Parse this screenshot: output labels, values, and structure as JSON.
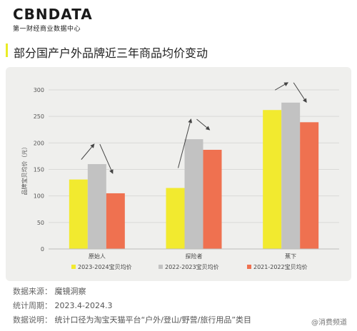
{
  "header": {
    "logo": "CBNDATA",
    "logo_sub": "第一财经商业数据中心",
    "title": "部分国产户外品牌近三年商品均价变动"
  },
  "chart_data": {
    "type": "bar",
    "categories": [
      "原始人",
      "探险者",
      "蕉下"
    ],
    "series": [
      {
        "name": "2023-2024宝贝均价",
        "color": "#f2ea2f",
        "values": [
          131,
          115,
          262
        ]
      },
      {
        "name": "2022-2023宝贝均价",
        "color": "#c2c2c2",
        "values": [
          160,
          207,
          276
        ]
      },
      {
        "name": "2021-2022宝贝均价",
        "color": "#ef7150",
        "values": [
          105,
          187,
          239
        ]
      }
    ],
    "ylabel": "品牌宝贝均价（元）",
    "ylim": [
      0,
      300
    ],
    "yticks": [
      0,
      50,
      100,
      150,
      200,
      250,
      300
    ],
    "grid": true,
    "legend_position": "bottom"
  },
  "footer": {
    "source_label": "数据来源：",
    "source_value": "魔镜洞察",
    "period_label": "统计周期：",
    "period_value": "2023.4-2024.3",
    "note_label": "数据说明：",
    "note_value": "统计口径为淘宝天猫平台“户外/登山/野营/旅行用品”类目"
  },
  "watermark": "@消费频道"
}
